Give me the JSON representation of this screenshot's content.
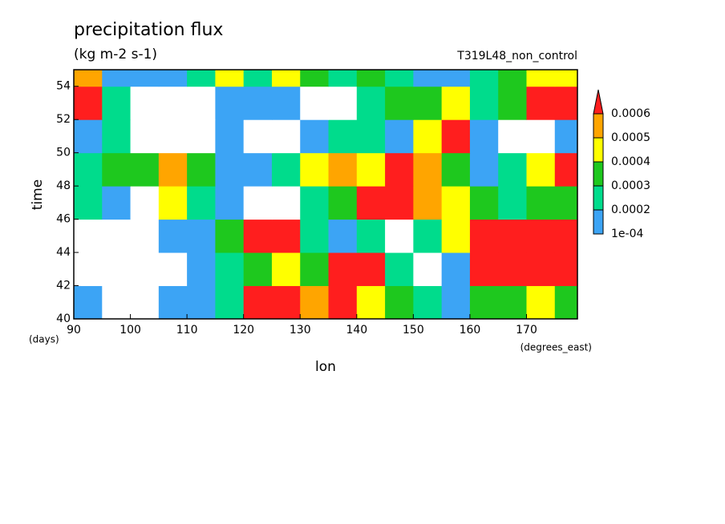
{
  "chart_data": {
    "type": "contour",
    "title": "precipitation flux",
    "subtitle": "(kg m-2 s-1)",
    "run_label": "T319L48_non_control",
    "x_label": "lon",
    "x_unit": "(degrees_east)",
    "y_label": "time",
    "y_unit": "(days)",
    "xlim": [
      90,
      179
    ],
    "ylim": [
      40,
      55
    ],
    "xticks": [
      90,
      100,
      110,
      120,
      130,
      140,
      150,
      160,
      170
    ],
    "yticks": [
      40,
      42,
      44,
      46,
      48,
      50,
      52,
      54
    ],
    "x_edges": [
      90,
      95,
      100,
      105,
      110,
      115,
      120,
      125,
      130,
      135,
      140,
      145,
      150,
      155,
      160,
      165,
      170,
      175,
      179
    ],
    "y_edges": [
      40,
      42,
      44,
      46,
      48,
      50,
      52,
      54,
      55
    ],
    "levels": [
      {
        "value": 0.0001,
        "label": "1e-04"
      },
      0.0002,
      0.0003,
      0.0004,
      0.0005,
      0.0006
    ],
    "colors": [
      "#3ca4f5",
      "#00dc8c",
      "#1ec81e",
      "#ffff00",
      "#ffa500",
      "#ff1e1e"
    ],
    "z": [
      [
        0.0001,
        0,
        0,
        0.0001,
        0.0001,
        0.0002,
        0.0006,
        0.0006,
        0.0005,
        0.0006,
        0.0004,
        0.0003,
        0.0002,
        0.0001,
        0.0003,
        0.0003,
        0.0004,
        0.0003
      ],
      [
        0,
        0,
        0,
        0,
        0.0001,
        0.0002,
        0.0003,
        0.0004,
        0.0003,
        0.0006,
        0.0006,
        0.0002,
        0,
        0.0001,
        0.0006,
        0.0006,
        0.0006,
        0.0006
      ],
      [
        0,
        0,
        0,
        0.0001,
        0.0001,
        0.0003,
        0.0006,
        0.0006,
        0.0002,
        0.0001,
        0.0002,
        0,
        0.0002,
        0.0004,
        0.0006,
        0.0006,
        0.0006,
        0.0006
      ],
      [
        0.0002,
        0.0001,
        0,
        0.0004,
        0.0002,
        0.0001,
        0,
        0,
        0.0002,
        0.0003,
        0.0006,
        0.0006,
        0.0005,
        0.0004,
        0.0003,
        0.0002,
        0.0003,
        0.0003
      ],
      [
        0.0002,
        0.0003,
        0.0003,
        0.0005,
        0.0003,
        0.0001,
        0.0001,
        0.0002,
        0.0004,
        0.0005,
        0.0004,
        0.0006,
        0.0005,
        0.0003,
        0.0001,
        0.0002,
        0.0004,
        0.0006
      ],
      [
        0.0001,
        0.0002,
        0,
        0,
        0,
        0.0001,
        0,
        0,
        0.0001,
        0.0002,
        0.0002,
        0.0001,
        0.0004,
        0.0006,
        0.0001,
        0,
        0,
        0.0001
      ],
      [
        0.0006,
        0.0002,
        0,
        0,
        0,
        0.0001,
        0.0001,
        0.0001,
        0,
        0,
        0.0002,
        0.0003,
        0.0003,
        0.0004,
        0.0002,
        0.0003,
        0.0006,
        0.0006
      ],
      [
        0.0005,
        0.0001,
        0.0001,
        0.0001,
        0.0002,
        0.0004,
        0.0002,
        0.0004,
        0.0003,
        0.0002,
        0.0003,
        0.0002,
        0.0001,
        0.0001,
        0.0002,
        0.0003,
        0.0004,
        0.0004
      ]
    ]
  }
}
